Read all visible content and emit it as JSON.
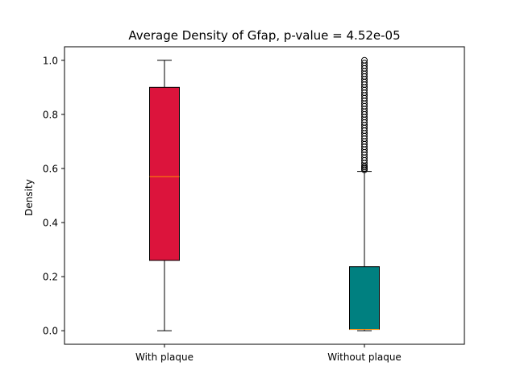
{
  "chart_data": {
    "type": "box",
    "title": "Average Density of Gfap, p-value = 4.52e-05",
    "xlabel": "",
    "ylabel": "Density",
    "ylim": [
      -0.05,
      1.05
    ],
    "yticks": [
      0.0,
      0.2,
      0.4,
      0.6,
      0.8,
      1.0
    ],
    "ytick_labels": [
      "0.0",
      "0.2",
      "0.4",
      "0.6",
      "0.8",
      "1.0"
    ],
    "grid": false,
    "categories": [
      "With plaque",
      "Without plaque"
    ],
    "boxes": [
      {
        "name": "With plaque",
        "whisker_low": 0.0,
        "q1": 0.26,
        "median": 0.57,
        "q3": 0.9,
        "whisker_high": 1.0,
        "fliers": [],
        "color": "#dc143c"
      },
      {
        "name": "Without plaque",
        "whisker_low": 0.0,
        "q1": 0.005,
        "median": 0.005,
        "q3": 0.237,
        "whisker_high": 0.589,
        "fliers": [
          0.595,
          0.6,
          0.605,
          0.61,
          0.62,
          0.63,
          0.64,
          0.65,
          0.66,
          0.67,
          0.68,
          0.69,
          0.7,
          0.71,
          0.72,
          0.73,
          0.74,
          0.75,
          0.76,
          0.77,
          0.78,
          0.79,
          0.8,
          0.81,
          0.82,
          0.83,
          0.84,
          0.85,
          0.86,
          0.87,
          0.88,
          0.89,
          0.9,
          0.91,
          0.92,
          0.93,
          0.94,
          0.95,
          0.96,
          0.97,
          0.98,
          0.99,
          1.0
        ],
        "color": "#008080"
      }
    ],
    "median_color": "#ff8c00",
    "flier_style": "open-circle"
  }
}
